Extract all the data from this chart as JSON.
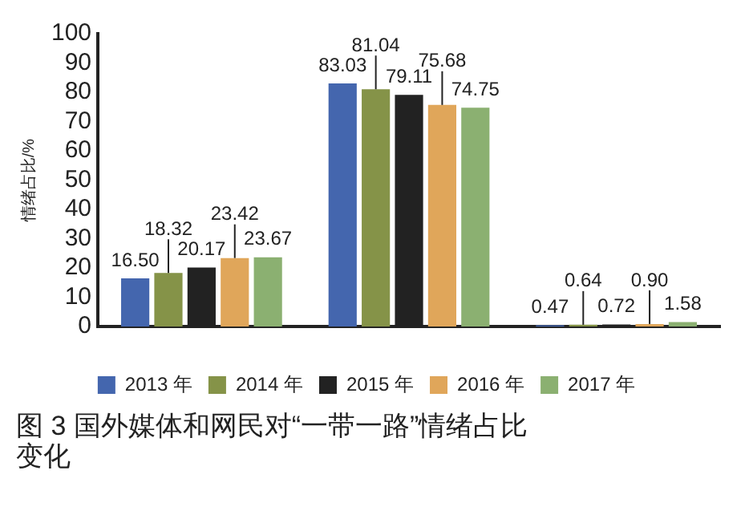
{
  "chart_data": {
    "type": "bar",
    "title": "图 3 国外媒体和网民对“一带一路”情绪占比变化",
    "ylabel": "情绪占比/%",
    "categories": [
      null,
      null,
      null
    ],
    "series": [
      {
        "name": "2013 年",
        "color": "#4466ae",
        "values": [
          16.5,
          83.03,
          0.47
        ],
        "value_labels": [
          "16.50",
          "83.03",
          "0.47"
        ]
      },
      {
        "name": "2014 年",
        "color": "#859348",
        "values": [
          18.32,
          81.04,
          0.64
        ],
        "value_labels": [
          "18.32",
          "81.04",
          "0.64"
        ]
      },
      {
        "name": "2015 年",
        "color": "#222222",
        "values": [
          20.17,
          79.11,
          0.72
        ],
        "value_labels": [
          "20.17",
          "79.11",
          "0.72"
        ]
      },
      {
        "name": "2016 年",
        "color": "#e0a65a",
        "values": [
          23.42,
          75.68,
          0.9
        ],
        "value_labels": [
          "23.42",
          "75.68",
          "0.90"
        ]
      },
      {
        "name": "2017 年",
        "color": "#8bb071",
        "values": [
          23.67,
          74.75,
          1.58
        ],
        "value_labels": [
          "23.67",
          "74.75",
          "1.58"
        ]
      }
    ],
    "ylim": [
      0,
      100
    ],
    "yticks": [
      0,
      10,
      20,
      30,
      40,
      50,
      60,
      70,
      80,
      90,
      100
    ],
    "grid": false,
    "legend": "bottom"
  }
}
